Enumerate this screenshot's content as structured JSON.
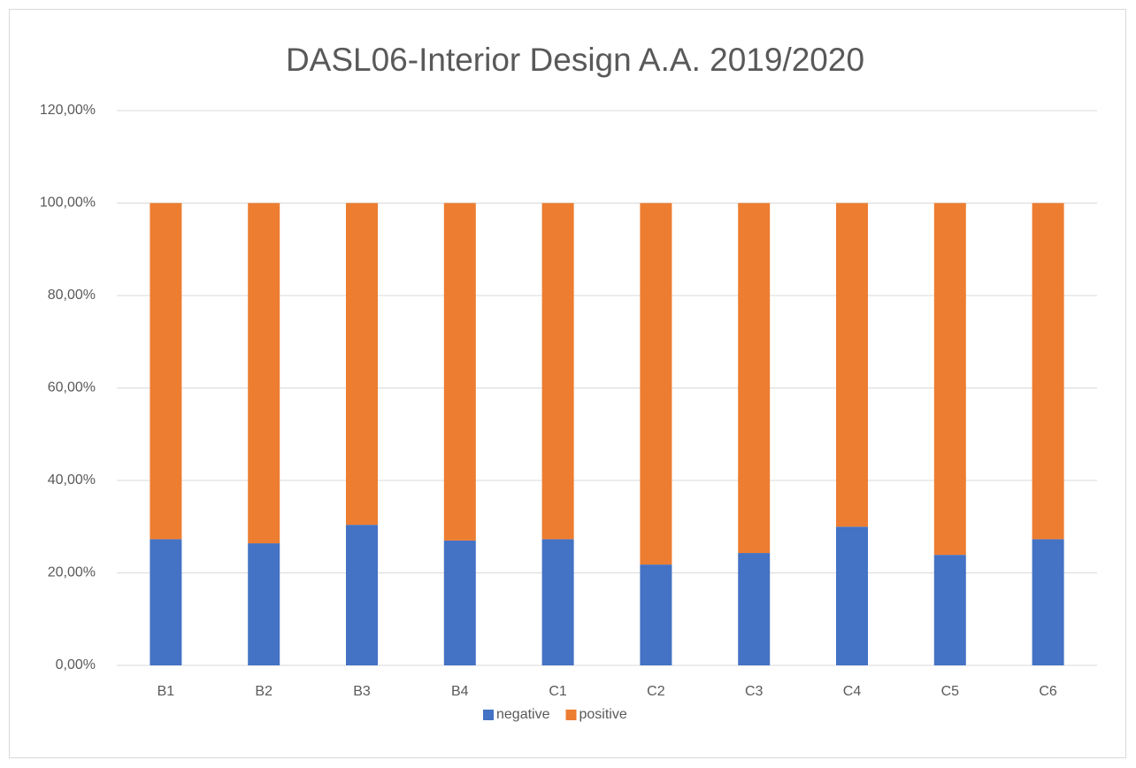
{
  "chart_data": {
    "type": "stacked_bar",
    "title": "DASL06-Interior Design A.A. 2019/2020",
    "categories": [
      "B1",
      "B2",
      "B3",
      "B4",
      "C1",
      "C2",
      "C3",
      "C4",
      "C5",
      "C6"
    ],
    "series": [
      {
        "name": "negative",
        "color": "#4472c4",
        "values": [
          27.3,
          26.4,
          30.4,
          27.0,
          27.3,
          21.8,
          24.3,
          30.0,
          23.9,
          27.3
        ]
      },
      {
        "name": "positive",
        "color": "#ed7d31",
        "values": [
          72.7,
          73.6,
          69.6,
          73.0,
          72.7,
          78.2,
          75.7,
          70.0,
          76.1,
          72.7
        ]
      }
    ],
    "ylim": [
      0,
      120
    ],
    "yticks": [
      {
        "value": 0,
        "label": "0,00%"
      },
      {
        "value": 20,
        "label": "20,00%"
      },
      {
        "value": 40,
        "label": "40,00%"
      },
      {
        "value": 60,
        "label": "60,00%"
      },
      {
        "value": 80,
        "label": "80,00%"
      },
      {
        "value": 100,
        "label": "100,00%"
      },
      {
        "value": 120,
        "label": "120,00%"
      }
    ],
    "grid": true,
    "legend": "bottom"
  }
}
